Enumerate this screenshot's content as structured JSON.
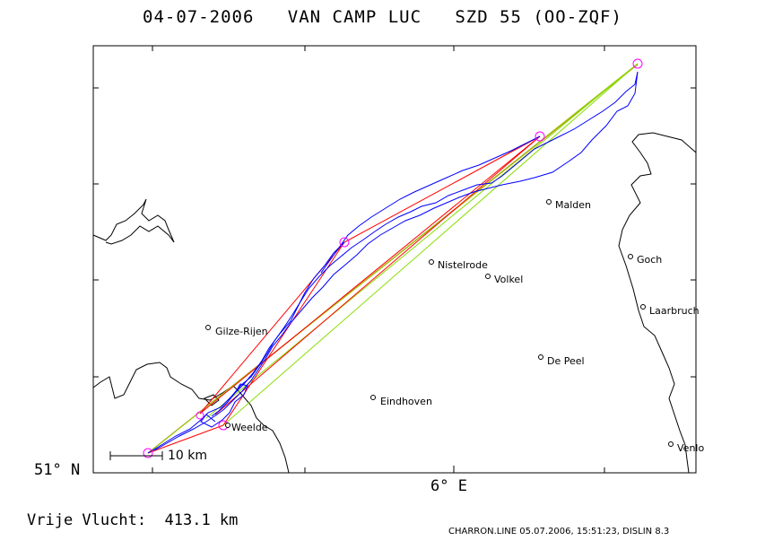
{
  "header": {
    "title": "04-07-2006   VAN CAMP LUC   SZD 55 (OO-ZQF)"
  },
  "axes": {
    "lat_label": "51° N",
    "lon_label": "6° E"
  },
  "scale": {
    "label": "10 km"
  },
  "places": [
    {
      "name": "Malden"
    },
    {
      "name": "Nistelrode"
    },
    {
      "name": "Volkel"
    },
    {
      "name": "Goch"
    },
    {
      "name": "Laarbruch"
    },
    {
      "name": "Gilze-Rijen"
    },
    {
      "name": "De Peel"
    },
    {
      "name": "Eindhoven"
    },
    {
      "name": "Weelde"
    },
    {
      "name": "Venlo"
    }
  ],
  "flight": {
    "distance_text": "Vrije Vlucht:  413.1 km"
  },
  "footer": {
    "text": "CHARRON.LINE 05.07.2006, 15:51:23, DISLIN 8.3"
  },
  "colors": {
    "track": "#0000ff",
    "task_line": "#ff0000",
    "alt_line": "#88dd00",
    "turnpoint": "#ff00ff",
    "border": "#000000"
  }
}
